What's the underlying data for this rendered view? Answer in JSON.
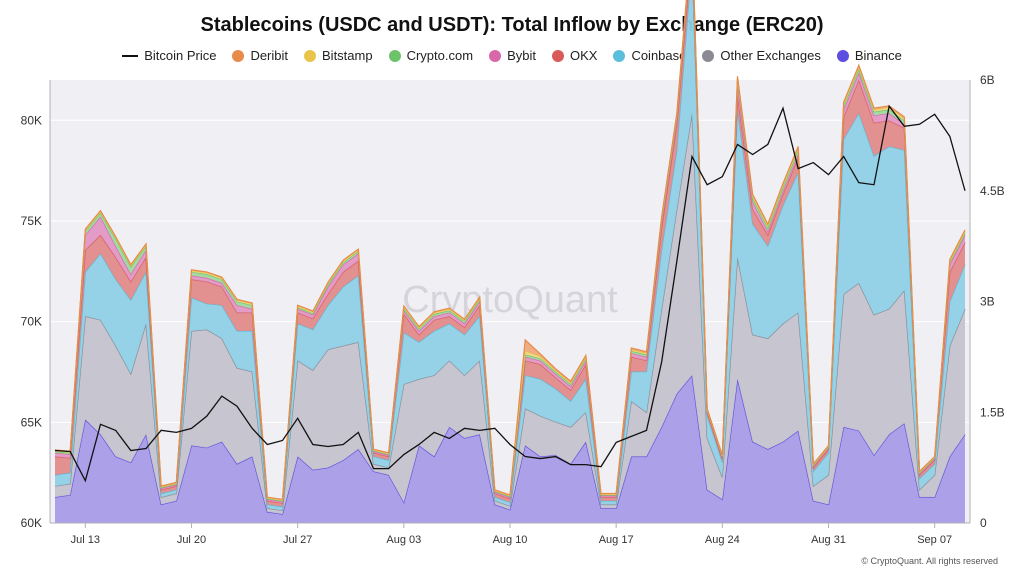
{
  "title": "Stablecoins (USDC and USDT): Total Inflow by Exchange (ERC20)",
  "watermark": "CryptoQuant",
  "footer": "© CryptoQuant. All rights reserved",
  "chart_data": {
    "type": "area",
    "stacked": true,
    "title": "Stablecoins (USDC and USDT): Total Inflow by Exchange (ERC20)",
    "legend_position": "top-center",
    "grid": true,
    "x_dates": [
      "Jul 11",
      "Jul 12",
      "Jul 13",
      "Jul 14",
      "Jul 15",
      "Jul 16",
      "Jul 17",
      "Jul 18",
      "Jul 19",
      "Jul 20",
      "Jul 21",
      "Jul 22",
      "Jul 23",
      "Jul 24",
      "Jul 25",
      "Jul 26",
      "Jul 27",
      "Jul 28",
      "Jul 29",
      "Jul 30",
      "Jul 31",
      "Aug 01",
      "Aug 02",
      "Aug 03",
      "Aug 04",
      "Aug 05",
      "Aug 06",
      "Aug 07",
      "Aug 08",
      "Aug 09",
      "Aug 10",
      "Aug 11",
      "Aug 12",
      "Aug 13",
      "Aug 14",
      "Aug 15",
      "Aug 16",
      "Aug 17",
      "Aug 18",
      "Aug 19",
      "Aug 20",
      "Aug 21",
      "Aug 22",
      "Aug 23",
      "Aug 24",
      "Aug 25",
      "Aug 26",
      "Aug 27",
      "Aug 28",
      "Aug 29",
      "Aug 30",
      "Aug 31",
      "Sep 01",
      "Sep 02",
      "Sep 03",
      "Sep 04",
      "Sep 05",
      "Sep 06",
      "Sep 07",
      "Sep 08",
      "Sep 09"
    ],
    "x_tick_labels": [
      "Jul 13",
      "Jul 20",
      "Jul 27",
      "Aug 03",
      "Aug 10",
      "Aug 17",
      "Aug 24",
      "Aug 31",
      "Sep 07"
    ],
    "x_tick_indices": [
      2,
      9,
      16,
      23,
      30,
      37,
      44,
      51,
      58
    ],
    "y_left": {
      "ticks": [
        "60K",
        "65K",
        "70K",
        "75K",
        "80K"
      ],
      "tick_values": [
        60000,
        65000,
        70000,
        75000,
        80000
      ],
      "range": [
        60000,
        82000
      ]
    },
    "y_right": {
      "ticks": [
        "0",
        "1.5B",
        "3B",
        "4.5B",
        "6B"
      ],
      "tick_values": [
        0,
        1.5,
        3,
        4.5,
        6
      ],
      "range": [
        0,
        6.0
      ],
      "unit": "B"
    },
    "series": [
      {
        "name": "Binance",
        "color": "#5b4ee0",
        "fill": "#a89ce8",
        "values": [
          0.35,
          0.38,
          1.4,
          1.2,
          0.9,
          0.82,
          1.2,
          0.25,
          0.3,
          1.05,
          1.02,
          1.1,
          0.8,
          0.9,
          0.15,
          0.12,
          0.9,
          0.72,
          0.75,
          0.85,
          1.0,
          0.7,
          0.65,
          0.28,
          1.05,
          0.9,
          1.3,
          1.15,
          1.2,
          0.25,
          0.18,
          1.05,
          0.9,
          0.92,
          0.8,
          1.1,
          0.2,
          0.2,
          0.9,
          0.9,
          1.3,
          1.75,
          2.0,
          0.45,
          0.32,
          1.95,
          1.1,
          1.0,
          1.1,
          1.25,
          0.3,
          0.25,
          1.3,
          1.25,
          0.92,
          1.2,
          1.35,
          0.35,
          0.35,
          0.9,
          1.2
        ]
      },
      {
        "name": "Other Exchanges",
        "color": "#8a8a94",
        "fill": "#c4c2cc",
        "values": [
          0.15,
          0.15,
          1.4,
          1.55,
          1.5,
          1.2,
          1.5,
          0.1,
          0.1,
          1.55,
          1.6,
          1.4,
          1.3,
          1.15,
          0.05,
          0.05,
          1.3,
          1.35,
          1.6,
          1.55,
          1.45,
          0.1,
          0.1,
          1.6,
          0.9,
          1.1,
          0.9,
          0.85,
          1.0,
          0.05,
          0.05,
          0.5,
          0.55,
          0.45,
          0.5,
          0.4,
          0.05,
          0.05,
          0.75,
          0.6,
          1.6,
          2.5,
          3.55,
          0.7,
          0.3,
          1.65,
          1.45,
          1.5,
          1.6,
          1.6,
          0.2,
          0.4,
          1.8,
          2.0,
          1.9,
          1.7,
          1.8,
          0.1,
          0.3,
          1.5,
          1.7
        ]
      },
      {
        "name": "Coinbase",
        "color": "#5bbfdc",
        "fill": "#8fd0e6",
        "values": [
          0.15,
          0.15,
          0.6,
          0.9,
          0.9,
          1.0,
          0.7,
          0.05,
          0.05,
          0.45,
          0.35,
          0.45,
          0.5,
          0.55,
          0.05,
          0.05,
          0.5,
          0.55,
          0.6,
          0.8,
          0.9,
          0.1,
          0.1,
          0.7,
          0.5,
          0.6,
          0.5,
          0.55,
          0.6,
          0.05,
          0.05,
          0.45,
          0.5,
          0.45,
          0.35,
          0.45,
          0.05,
          0.05,
          0.4,
          0.55,
          0.8,
          0.8,
          2.05,
          0.3,
          0.2,
          2.0,
          1.5,
          1.25,
          1.6,
          1.9,
          0.2,
          0.3,
          2.1,
          2.3,
          2.15,
          2.2,
          1.9,
          0.15,
          0.15,
          0.6,
          0.6
        ]
      },
      {
        "name": "OKX",
        "color": "#d85a5a",
        "fill": "#e08a8a",
        "values": [
          0.25,
          0.2,
          0.3,
          0.25,
          0.3,
          0.25,
          0.2,
          0.05,
          0.05,
          0.25,
          0.3,
          0.25,
          0.25,
          0.25,
          0.05,
          0.05,
          0.15,
          0.15,
          0.15,
          0.2,
          0.2,
          0.05,
          0.05,
          0.25,
          0.1,
          0.15,
          0.1,
          0.1,
          0.15,
          0.05,
          0.05,
          0.2,
          0.2,
          0.15,
          0.15,
          0.2,
          0.05,
          0.05,
          0.2,
          0.15,
          0.3,
          0.35,
          0.2,
          0.05,
          0.05,
          0.2,
          0.2,
          0.15,
          0.15,
          0.2,
          0.05,
          0.05,
          0.3,
          0.45,
          0.45,
          0.35,
          0.3,
          0.05,
          0.05,
          0.4,
          0.3
        ]
      },
      {
        "name": "Bybit",
        "color": "#d868a8",
        "fill": "#e296c4",
        "values": [
          0.05,
          0.05,
          0.2,
          0.25,
          0.15,
          0.1,
          0.1,
          0.02,
          0.02,
          0.05,
          0.05,
          0.05,
          0.1,
          0.05,
          0.02,
          0.02,
          0.05,
          0.05,
          0.1,
          0.1,
          0.1,
          0.02,
          0.02,
          0.05,
          0.05,
          0.05,
          0.05,
          0.05,
          0.05,
          0.02,
          0.02,
          0.05,
          0.05,
          0.05,
          0.05,
          0.05,
          0.02,
          0.02,
          0.05,
          0.05,
          0.05,
          0.05,
          0.1,
          0.02,
          0.02,
          0.15,
          0.1,
          0.05,
          0.05,
          0.05,
          0.02,
          0.02,
          0.1,
          0.1,
          0.1,
          0.1,
          0.05,
          0.02,
          0.02,
          0.1,
          0.1
        ]
      },
      {
        "name": "Crypto.com",
        "color": "#6cc36c",
        "fill": "#9fd89f",
        "values": [
          0.02,
          0.02,
          0.05,
          0.05,
          0.1,
          0.1,
          0.05,
          0.01,
          0.01,
          0.05,
          0.05,
          0.05,
          0.05,
          0.05,
          0.01,
          0.01,
          0.02,
          0.02,
          0.03,
          0.03,
          0.03,
          0.01,
          0.01,
          0.03,
          0.03,
          0.03,
          0.03,
          0.03,
          0.03,
          0.01,
          0.01,
          0.03,
          0.03,
          0.03,
          0.03,
          0.03,
          0.01,
          0.01,
          0.03,
          0.03,
          0.05,
          0.05,
          0.05,
          0.01,
          0.01,
          0.05,
          0.05,
          0.05,
          0.05,
          0.05,
          0.01,
          0.01,
          0.05,
          0.05,
          0.05,
          0.05,
          0.05,
          0.01,
          0.01,
          0.03,
          0.03
        ]
      },
      {
        "name": "Bitstamp",
        "color": "#e8c44a",
        "fill": "#efd67f",
        "values": [
          0.01,
          0.01,
          0.02,
          0.02,
          0.02,
          0.02,
          0.02,
          0.01,
          0.01,
          0.02,
          0.02,
          0.02,
          0.02,
          0.02,
          0.01,
          0.01,
          0.02,
          0.02,
          0.02,
          0.02,
          0.02,
          0.01,
          0.01,
          0.02,
          0.02,
          0.02,
          0.02,
          0.02,
          0.02,
          0.01,
          0.01,
          0.05,
          0.03,
          0.02,
          0.02,
          0.02,
          0.01,
          0.01,
          0.02,
          0.02,
          0.03,
          0.03,
          0.03,
          0.01,
          0.01,
          0.03,
          0.03,
          0.03,
          0.03,
          0.03,
          0.01,
          0.01,
          0.03,
          0.03,
          0.03,
          0.03,
          0.03,
          0.01,
          0.01,
          0.02,
          0.02
        ]
      },
      {
        "name": "Deribit",
        "color": "#e88a4a",
        "fill": "#eeaa7a",
        "values": [
          0.01,
          0.01,
          0.01,
          0.01,
          0.01,
          0.01,
          0.01,
          0.01,
          0.01,
          0.01,
          0.01,
          0.01,
          0.01,
          0.01,
          0.01,
          0.01,
          0.01,
          0.01,
          0.01,
          0.01,
          0.01,
          0.01,
          0.01,
          0.01,
          0.01,
          0.01,
          0.01,
          0.01,
          0.01,
          0.01,
          0.01,
          0.15,
          0.03,
          0.02,
          0.02,
          0.02,
          0.01,
          0.01,
          0.02,
          0.02,
          0.02,
          0.02,
          0.02,
          0.01,
          0.01,
          0.02,
          0.02,
          0.02,
          0.02,
          0.02,
          0.01,
          0.01,
          0.02,
          0.02,
          0.02,
          0.02,
          0.02,
          0.01,
          0.01,
          0.02,
          0.02
        ]
      }
    ],
    "line_series": {
      "name": "Bitcoin Price",
      "color": "#111111",
      "axis": "left",
      "values": [
        63600,
        63550,
        62100,
        64900,
        64600,
        63600,
        63700,
        64600,
        64500,
        64700,
        65300,
        66300,
        65800,
        64700,
        63900,
        64100,
        65200,
        63900,
        63800,
        63900,
        64500,
        62700,
        62700,
        63400,
        63900,
        64500,
        64200,
        64700,
        64600,
        64700,
        63900,
        63300,
        63200,
        63300,
        62900,
        62900,
        62800,
        64000,
        64300,
        64600,
        68000,
        73000,
        78200,
        76800,
        77200,
        78800,
        78300,
        78800,
        80600,
        77600,
        77900,
        77300,
        78200,
        76900,
        76800,
        80700,
        79700,
        79800,
        80300,
        79200,
        76500
      ]
    }
  }
}
